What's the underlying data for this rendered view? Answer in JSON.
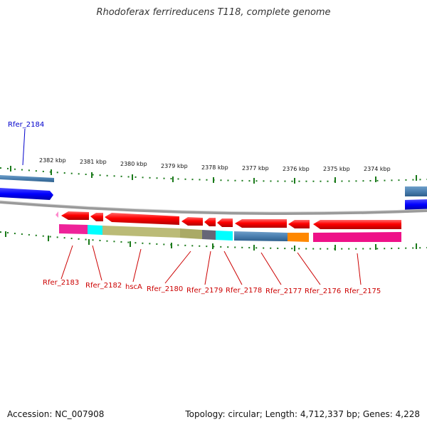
{
  "title": "Rhodoferax ferrireducens T118, complete genome",
  "footer": {
    "accession": "Accession: NC_007908",
    "topology": "Topology: circular; Length: 4,712,337 bp; Genes: 4,228"
  },
  "scale": {
    "ticks": [
      {
        "label": "2382 kbp",
        "kbp": 2382
      },
      {
        "label": "2381 kbp",
        "kbp": 2381
      },
      {
        "label": "2380 kbp",
        "kbp": 2380
      },
      {
        "label": "2379 kbp",
        "kbp": 2379
      },
      {
        "label": "2378 kbp",
        "kbp": 2378
      },
      {
        "label": "2377 kbp",
        "kbp": 2377
      },
      {
        "label": "2376 kbp",
        "kbp": 2376
      },
      {
        "label": "2375 kbp",
        "kbp": 2375
      },
      {
        "label": "2374 kbp",
        "kbp": 2374
      }
    ]
  },
  "genes": [
    {
      "label": "Rfer_2184",
      "color": "#0000cc"
    },
    {
      "label": "Rfer_2183",
      "color": "#cc0000"
    },
    {
      "label": "Rfer_2182",
      "color": "#cc0000"
    },
    {
      "label": "hscA",
      "color": "#cc0000"
    },
    {
      "label": "Rfer_2180",
      "color": "#cc0000"
    },
    {
      "label": "Rfer_2179",
      "color": "#cc0000"
    },
    {
      "label": "Rfer_2178",
      "color": "#cc0000"
    },
    {
      "label": "Rfer_2177",
      "color": "#cc0000"
    },
    {
      "label": "Rfer_2176",
      "color": "#cc0000"
    },
    {
      "label": "Rfer_2175",
      "color": "#cc0000"
    }
  ],
  "colors": {
    "gene_reverse": "#ee1111",
    "gene_forward": "#0000ee",
    "tick": "#1a7a1a",
    "backbone": "#888888"
  }
}
